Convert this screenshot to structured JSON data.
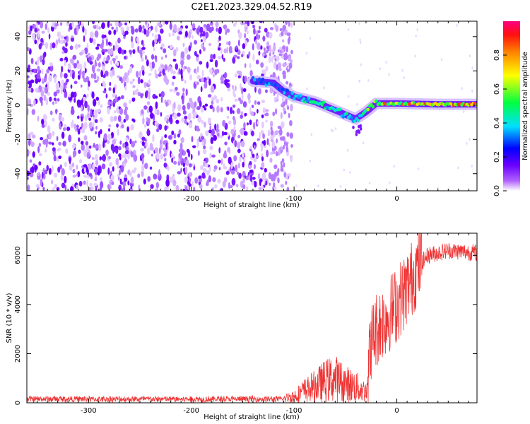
{
  "title": "C2E1.2023.329.04.52.R19",
  "chart_data": [
    {
      "type": "heatmap",
      "xlabel": "Height of straight line (km)",
      "ylabel": "Frequency (Hz)",
      "xlim": [
        -360,
        78
      ],
      "ylim": [
        -50,
        49
      ],
      "xticks": [
        -300,
        -200,
        -100,
        0
      ],
      "yticks": [
        -40,
        -20,
        0,
        20,
        40
      ],
      "colorbar": {
        "label": "Normalized spectral amplitude",
        "range": [
          0,
          1
        ],
        "ticks": [
          "0.0",
          "0.2",
          "0.4",
          "0.6",
          "0.8"
        ],
        "colors": [
          "#ffffff",
          "#8000ff",
          "#0000ff",
          "#00e0ff",
          "#00ff00",
          "#ffff00",
          "#ff8000",
          "#ff0000",
          "#ff0080"
        ]
      },
      "signal_track": [
        {
          "x": -140,
          "y": 14
        },
        {
          "x": -120,
          "y": 13
        },
        {
          "x": -110,
          "y": 8
        },
        {
          "x": -100,
          "y": 5
        },
        {
          "x": -80,
          "y": 2
        },
        {
          "x": -60,
          "y": -3
        },
        {
          "x": -40,
          "y": -8
        },
        {
          "x": -30,
          "y": -4
        },
        {
          "x": -20,
          "y": 1
        },
        {
          "x": 0,
          "y": 1
        },
        {
          "x": 40,
          "y": 0.5
        },
        {
          "x": 78,
          "y": 0.5
        }
      ],
      "noise_region": {
        "x_from": -360,
        "x_to": -110,
        "amplitude": 0.15
      }
    },
    {
      "type": "line",
      "xlabel": "Height of straight line (km)",
      "ylabel": "SNR (10 * v/v)",
      "xlim": [
        -360,
        78
      ],
      "ylim": [
        0,
        6900
      ],
      "xticks": [
        -300,
        -200,
        -100,
        0
      ],
      "yticks": [
        0,
        2000,
        4000,
        6000
      ],
      "color": "#ee3333",
      "profile": [
        {
          "x": -360,
          "y": 150
        },
        {
          "x": -110,
          "y": 150
        },
        {
          "x": -100,
          "y": 250
        },
        {
          "x": -90,
          "y": 450
        },
        {
          "x": -80,
          "y": 600
        },
        {
          "x": -70,
          "y": 800
        },
        {
          "x": -60,
          "y": 900
        },
        {
          "x": -50,
          "y": 700
        },
        {
          "x": -40,
          "y": 600
        },
        {
          "x": -30,
          "y": 400
        },
        {
          "x": -25,
          "y": 2500
        },
        {
          "x": -20,
          "y": 3000
        },
        {
          "x": -10,
          "y": 3500
        },
        {
          "x": 0,
          "y": 4000
        },
        {
          "x": 10,
          "y": 4700
        },
        {
          "x": 20,
          "y": 5500
        },
        {
          "x": 30,
          "y": 6000
        },
        {
          "x": 50,
          "y": 6200
        },
        {
          "x": 78,
          "y": 6100
        }
      ]
    }
  ]
}
